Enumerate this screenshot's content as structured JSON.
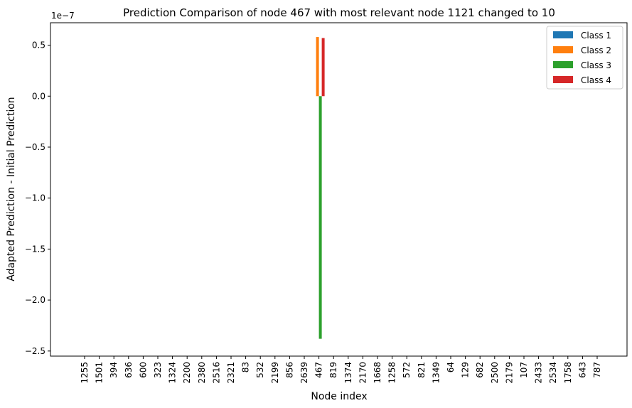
{
  "chart_data": {
    "type": "bar",
    "title": "Prediction Comparison of node 467 with most relevant node 1121 changed to 10",
    "xlabel": "Node index",
    "ylabel": "Adapted Prediction - Initial Prediction",
    "y_offset_label": "1e−7",
    "ylim": [
      -2.55e-07,
      7.2e-08
    ],
    "yticks": [
      5e-08,
      0.0,
      -5e-08,
      -1e-07,
      -1.5e-07,
      -2e-07,
      -2.5e-07
    ],
    "ytick_labels": [
      "0.5",
      "0.0",
      "−0.5",
      "−1.0",
      "−1.5",
      "−2.0",
      "−2.5"
    ],
    "categories": [
      "1255",
      "1501",
      "394",
      "636",
      "600",
      "323",
      "1324",
      "2200",
      "2380",
      "2516",
      "2321",
      "83",
      "532",
      "2199",
      "856",
      "2639",
      "467",
      "819",
      "1374",
      "2170",
      "1668",
      "1258",
      "572",
      "821",
      "1349",
      "64",
      "129",
      "682",
      "2500",
      "2179",
      "107",
      "2433",
      "2534",
      "1758",
      "643",
      "787"
    ],
    "series": [
      {
        "name": "Class 1",
        "color": "#1f77b4",
        "values": [
          0,
          0,
          0,
          0,
          0,
          0,
          0,
          0,
          0,
          0,
          0,
          0,
          0,
          0,
          0,
          0,
          0,
          0,
          0,
          0,
          0,
          0,
          0,
          0,
          0,
          0,
          0,
          0,
          0,
          0,
          0,
          0,
          0,
          0,
          0,
          0
        ]
      },
      {
        "name": "Class 2",
        "color": "#ff7f0e",
        "values": [
          0,
          0,
          0,
          0,
          0,
          0,
          0,
          0,
          0,
          0,
          0,
          0,
          0,
          0,
          0,
          0,
          5.8e-08,
          0,
          0,
          0,
          0,
          0,
          0,
          0,
          0,
          0,
          0,
          0,
          0,
          0,
          0,
          0,
          0,
          0,
          0,
          0
        ]
      },
      {
        "name": "Class 3",
        "color": "#2ca02c",
        "values": [
          0,
          0,
          0,
          0,
          0,
          0,
          0,
          0,
          0,
          0,
          0,
          0,
          0,
          0,
          0,
          0,
          -2.38e-07,
          0,
          0,
          0,
          0,
          0,
          0,
          0,
          0,
          0,
          0,
          0,
          0,
          0,
          0,
          0,
          0,
          0,
          0,
          0
        ]
      },
      {
        "name": "Class 4",
        "color": "#d62728",
        "values": [
          0,
          0,
          0,
          0,
          0,
          0,
          0,
          0,
          0,
          0,
          0,
          0,
          0,
          0,
          0,
          0,
          5.7e-08,
          0,
          0,
          0,
          0,
          0,
          0,
          0,
          0,
          0,
          0,
          0,
          0,
          0,
          0,
          0,
          0,
          0,
          0,
          0
        ]
      }
    ],
    "legend_position": "top-right",
    "grid": false
  }
}
